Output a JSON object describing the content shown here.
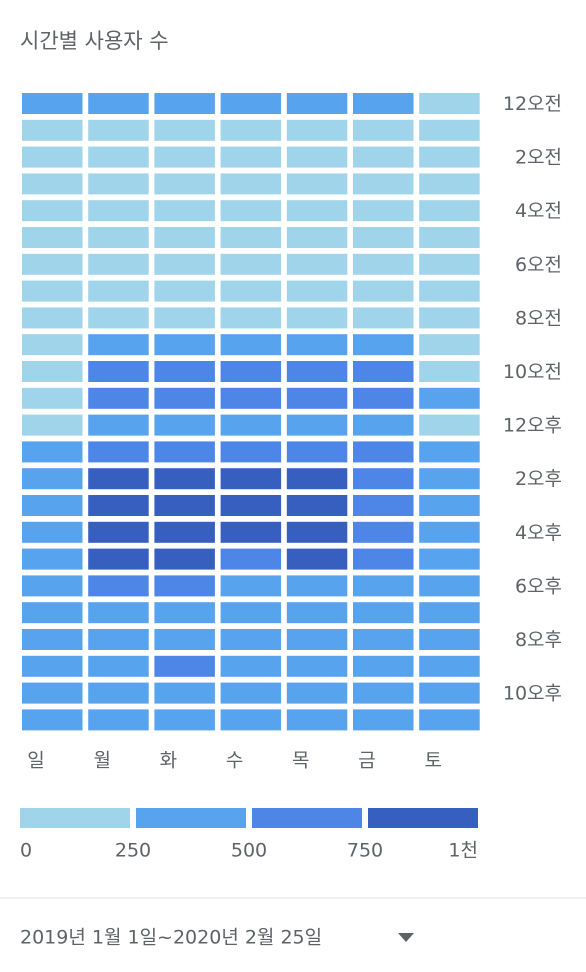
{
  "chart_data": {
    "type": "heatmap",
    "title": "시간별 사용자 수",
    "x_categories": [
      "일",
      "월",
      "화",
      "수",
      "목",
      "금",
      "토"
    ],
    "y_categories": [
      "12오전",
      null,
      "2오전",
      null,
      "4오전",
      null,
      "6오전",
      null,
      "8오전",
      null,
      "10오전",
      null,
      "12오후",
      null,
      "2오후",
      null,
      "4오후",
      null,
      "6오후",
      null,
      "8오후",
      null,
      "10오후",
      null
    ],
    "values": [
      [
        380,
        380,
        380,
        380,
        380,
        380,
        150
      ],
      [
        150,
        150,
        150,
        150,
        150,
        150,
        150
      ],
      [
        150,
        150,
        150,
        150,
        150,
        150,
        150
      ],
      [
        150,
        150,
        150,
        150,
        150,
        150,
        150
      ],
      [
        150,
        150,
        150,
        150,
        150,
        150,
        150
      ],
      [
        150,
        150,
        150,
        150,
        150,
        150,
        150
      ],
      [
        150,
        150,
        150,
        150,
        150,
        150,
        150
      ],
      [
        150,
        150,
        150,
        150,
        150,
        150,
        150
      ],
      [
        150,
        150,
        150,
        150,
        150,
        150,
        150
      ],
      [
        150,
        380,
        380,
        380,
        380,
        380,
        150
      ],
      [
        150,
        620,
        620,
        620,
        620,
        620,
        150
      ],
      [
        150,
        620,
        620,
        620,
        620,
        620,
        380
      ],
      [
        150,
        380,
        380,
        380,
        380,
        380,
        150
      ],
      [
        380,
        620,
        620,
        620,
        620,
        620,
        380
      ],
      [
        380,
        850,
        850,
        850,
        850,
        620,
        380
      ],
      [
        380,
        850,
        850,
        850,
        850,
        620,
        380
      ],
      [
        380,
        850,
        850,
        850,
        850,
        620,
        380
      ],
      [
        380,
        850,
        850,
        620,
        850,
        620,
        380
      ],
      [
        380,
        620,
        620,
        380,
        380,
        380,
        380
      ],
      [
        380,
        380,
        380,
        380,
        380,
        380,
        380
      ],
      [
        380,
        380,
        380,
        380,
        380,
        380,
        380
      ],
      [
        380,
        380,
        620,
        380,
        380,
        380,
        380
      ],
      [
        380,
        380,
        380,
        380,
        380,
        380,
        380
      ],
      [
        380,
        380,
        380,
        380,
        380,
        380,
        380
      ]
    ],
    "colorbar": {
      "ticks": [
        0,
        250,
        500,
        750,
        {
          "value": 1000,
          "label": "1천"
        }
      ],
      "colors": [
        "#9fd4ea",
        "#57a3ee",
        "#4e86e8",
        "#365fbf"
      ]
    },
    "date_range": "2019년 1월 1일~2020년 2월 25일"
  }
}
